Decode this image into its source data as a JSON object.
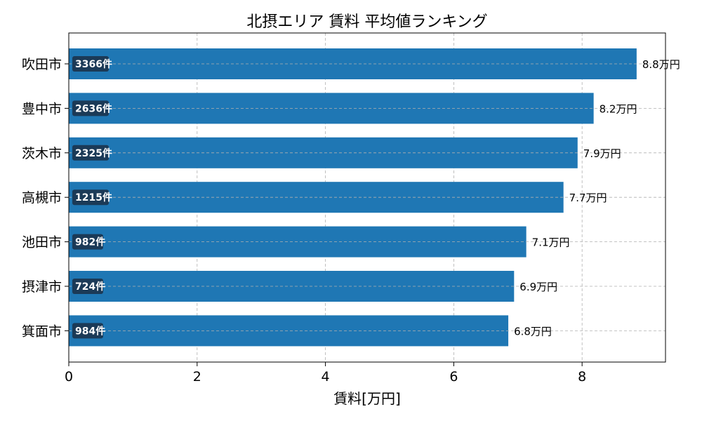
{
  "chart_data": {
    "type": "bar",
    "orientation": "horizontal",
    "title": "北摂エリア 賃料 平均値ランキング",
    "xlabel": "賃料[万円]",
    "ylabel": "",
    "xlim": [
      0,
      9.3
    ],
    "x_ticks": [
      0,
      2,
      4,
      6,
      8
    ],
    "grid": true,
    "categories": [
      "吹田市",
      "豊中市",
      "茨木市",
      "高槻市",
      "池田市",
      "摂津市",
      "箕面市"
    ],
    "values": [
      8.85,
      8.18,
      7.93,
      7.71,
      7.13,
      6.94,
      6.85
    ],
    "value_labels": [
      "8.8万円",
      "8.2万円",
      "7.9万円",
      "7.7万円",
      "7.1万円",
      "6.9万円",
      "6.8万円"
    ],
    "count_labels": [
      "3366件",
      "2636件",
      "2325件",
      "1215件",
      "982件",
      "724件",
      "984件"
    ],
    "colors": {
      "bar": "#1f77b4",
      "count_badge": "#1b3a57",
      "grid": "#b0b0b0"
    }
  }
}
